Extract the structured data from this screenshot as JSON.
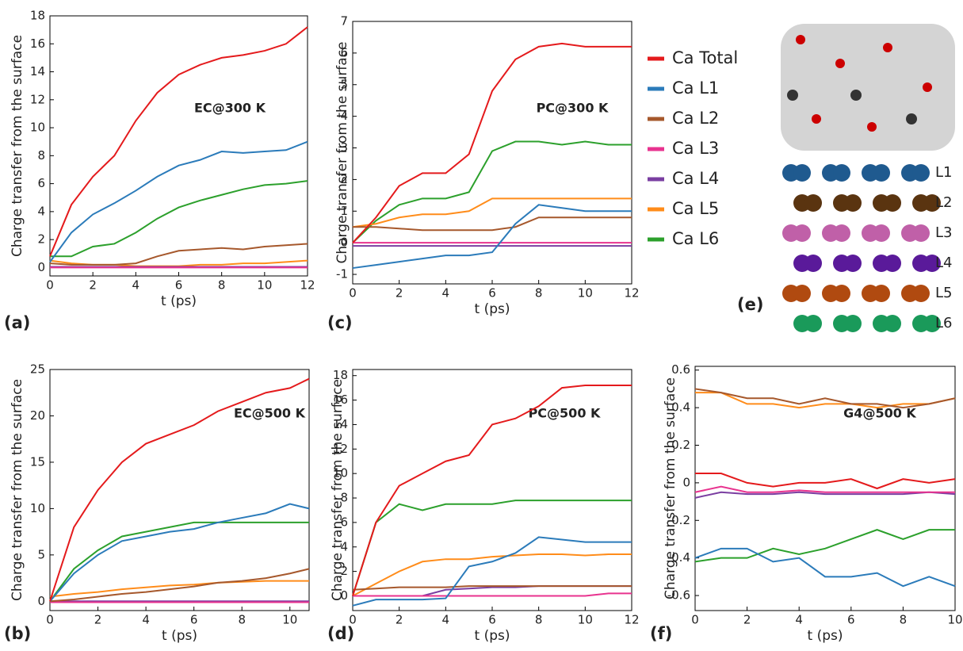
{
  "chart_data": [
    {
      "type": "line",
      "label": "(a)",
      "annotation": "EC@300 K",
      "xlabel": "t (ps)",
      "ylabel": "Charge transfer from the surface",
      "x": [
        0,
        1,
        2,
        3,
        4,
        5,
        6,
        7,
        8,
        9,
        10,
        11,
        12
      ],
      "xlim": [
        0,
        12
      ],
      "xticks": [
        0,
        2,
        4,
        6,
        8,
        10,
        12
      ],
      "ylim": [
        -0.6,
        18
      ],
      "yticks": [
        0,
        2,
        4,
        6,
        8,
        10,
        12,
        14,
        16,
        18
      ],
      "series": [
        {
          "name": "Ca Total",
          "color": "#e41a1c",
          "values": [
            0.8,
            4.5,
            6.5,
            8,
            10.5,
            12.5,
            13.8,
            14.5,
            15,
            15.2,
            15.5,
            16,
            17.2
          ]
        },
        {
          "name": "Ca L1",
          "color": "#2b7bba",
          "values": [
            0.4,
            2.5,
            3.8,
            4.6,
            5.5,
            6.5,
            7.3,
            7.7,
            8.3,
            8.2,
            8.3,
            8.4,
            9
          ]
        },
        {
          "name": "Ca L2",
          "color": "#a6582c",
          "values": [
            0.3,
            0.2,
            0.2,
            0.2,
            0.3,
            0.8,
            1.2,
            1.3,
            1.4,
            1.3,
            1.5,
            1.6,
            1.7
          ]
        },
        {
          "name": "Ca L3",
          "color": "#e8338f",
          "values": [
            0,
            0,
            0,
            0,
            0,
            0,
            0,
            0,
            0,
            0,
            0,
            0,
            0
          ]
        },
        {
          "name": "Ca L4",
          "color": "#7a3ea1",
          "values": [
            0.05,
            0.05,
            0.05,
            0.05,
            0.05,
            0.05,
            0.05,
            0.05,
            0.05,
            0.05,
            0.05,
            0.05,
            0.05
          ]
        },
        {
          "name": "Ca L5",
          "color": "#ff8c1a",
          "values": [
            0.5,
            0.3,
            0.2,
            0.2,
            0.1,
            0.1,
            0.1,
            0.2,
            0.2,
            0.3,
            0.3,
            0.4,
            0.5
          ]
        },
        {
          "name": "Ca L6",
          "color": "#2ca02c",
          "values": [
            0.8,
            0.8,
            1.5,
            1.7,
            2.5,
            3.5,
            4.3,
            4.8,
            5.2,
            5.6,
            5.9,
            6,
            6.2
          ]
        }
      ]
    },
    {
      "type": "line",
      "label": "(c)",
      "annotation": "PC@300 K",
      "xlabel": "t (ps)",
      "ylabel": "Charge transfer from the surface",
      "x": [
        0,
        1,
        2,
        3,
        4,
        5,
        6,
        7,
        8,
        9,
        10,
        11,
        12
      ],
      "xlim": [
        0,
        12
      ],
      "xticks": [
        0,
        2,
        4,
        6,
        8,
        10,
        12
      ],
      "ylim": [
        -1.3,
        7
      ],
      "yticks": [
        -1,
        0,
        1,
        2,
        3,
        4,
        5,
        6,
        7
      ],
      "series": [
        {
          "name": "Ca Total",
          "color": "#e41a1c",
          "values": [
            0,
            0.8,
            1.8,
            2.2,
            2.2,
            2.8,
            4.8,
            5.8,
            6.2,
            6.3,
            6.2,
            6.2,
            6.2
          ]
        },
        {
          "name": "Ca L1",
          "color": "#2b7bba",
          "values": [
            -0.8,
            -0.7,
            -0.6,
            -0.5,
            -0.4,
            -0.4,
            -0.3,
            0.6,
            1.2,
            1.1,
            1,
            1,
            1
          ]
        },
        {
          "name": "Ca L2",
          "color": "#a6582c",
          "values": [
            0.5,
            0.5,
            0.45,
            0.4,
            0.4,
            0.4,
            0.4,
            0.5,
            0.8,
            0.8,
            0.8,
            0.8,
            0.8
          ]
        },
        {
          "name": "Ca L3",
          "color": "#e8338f",
          "values": [
            0,
            0,
            0,
            0,
            0,
            0,
            0,
            0,
            0,
            0,
            0,
            0,
            0
          ]
        },
        {
          "name": "Ca L4",
          "color": "#7a3ea1",
          "values": [
            -0.1,
            -0.1,
            -0.1,
            -0.1,
            -0.1,
            -0.1,
            -0.1,
            -0.1,
            -0.1,
            -0.1,
            -0.1,
            -0.1,
            -0.1
          ]
        },
        {
          "name": "Ca L5",
          "color": "#ff8c1a",
          "values": [
            0.5,
            0.6,
            0.8,
            0.9,
            0.9,
            1,
            1.4,
            1.4,
            1.4,
            1.4,
            1.4,
            1.4,
            1.4
          ]
        },
        {
          "name": "Ca L6",
          "color": "#2ca02c",
          "values": [
            0,
            0.7,
            1.2,
            1.4,
            1.4,
            1.6,
            2.9,
            3.2,
            3.2,
            3.1,
            3.2,
            3.1,
            3.1
          ]
        }
      ]
    },
    {
      "type": "line",
      "label": "(b)",
      "annotation": "EC@500 K",
      "xlabel": "t (ps)",
      "ylabel": "Charge transfer from the surface",
      "x": [
        0,
        1,
        2,
        3,
        4,
        5,
        6,
        7,
        8,
        9,
        10,
        10.8
      ],
      "xlim": [
        0,
        10.8
      ],
      "xticks": [
        0,
        2,
        4,
        6,
        8,
        10
      ],
      "ylim": [
        -1,
        25
      ],
      "yticks": [
        0,
        5,
        10,
        15,
        20,
        25
      ],
      "series": [
        {
          "name": "Ca Total",
          "color": "#e41a1c",
          "values": [
            0,
            8,
            12,
            15,
            17,
            18,
            19,
            20.5,
            21.5,
            22.5,
            23,
            24
          ]
        },
        {
          "name": "Ca L1",
          "color": "#2b7bba",
          "values": [
            0,
            3,
            5,
            6.5,
            7,
            7.5,
            7.8,
            8.5,
            9,
            9.5,
            10.5,
            10
          ]
        },
        {
          "name": "Ca L2",
          "color": "#a6582c",
          "values": [
            0,
            0.2,
            0.5,
            0.8,
            1,
            1.3,
            1.6,
            2,
            2.2,
            2.5,
            3,
            3.5
          ]
        },
        {
          "name": "Ca L3",
          "color": "#e8338f",
          "values": [
            -0.1,
            -0.1,
            -0.1,
            -0.1,
            -0.1,
            -0.1,
            -0.1,
            -0.1,
            -0.1,
            -0.1,
            -0.1,
            -0.1
          ]
        },
        {
          "name": "Ca L4",
          "color": "#7a3ea1",
          "values": [
            0,
            0,
            0,
            0,
            0,
            0,
            0,
            0,
            0,
            0,
            0,
            0
          ]
        },
        {
          "name": "Ca L5",
          "color": "#ff8c1a",
          "values": [
            0.5,
            0.8,
            1,
            1.3,
            1.5,
            1.7,
            1.8,
            2,
            2.1,
            2.2,
            2.2,
            2.2
          ]
        },
        {
          "name": "Ca L6",
          "color": "#2ca02c",
          "values": [
            0,
            3.5,
            5.5,
            7,
            7.5,
            8,
            8.5,
            8.5,
            8.5,
            8.5,
            8.5,
            8.5
          ]
        }
      ]
    },
    {
      "type": "line",
      "label": "(d)",
      "annotation": "PC@500 K",
      "xlabel": "t (ps)",
      "ylabel": "Charge transfer from the surface",
      "x": [
        0,
        1,
        2,
        3,
        4,
        5,
        6,
        7,
        8,
        9,
        10,
        11,
        12
      ],
      "xlim": [
        0,
        12
      ],
      "xticks": [
        0,
        2,
        4,
        6,
        8,
        10,
        12
      ],
      "ylim": [
        -1.2,
        18.5
      ],
      "yticks": [
        0,
        2,
        4,
        6,
        8,
        10,
        12,
        14,
        16,
        18
      ],
      "series": [
        {
          "name": "Ca Total",
          "color": "#e41a1c",
          "values": [
            0,
            6,
            9,
            10,
            11,
            11.5,
            14,
            14.5,
            15.5,
            17,
            17.2,
            17.2,
            17.2
          ]
        },
        {
          "name": "Ca L1",
          "color": "#2b7bba",
          "values": [
            -0.8,
            -0.3,
            -0.3,
            -0.3,
            -0.2,
            2.4,
            2.8,
            3.5,
            4.8,
            4.6,
            4.4,
            4.4,
            4.4
          ]
        },
        {
          "name": "Ca L2",
          "color": "#a6582c",
          "values": [
            0.5,
            0.6,
            0.7,
            0.7,
            0.7,
            0.8,
            0.8,
            0.8,
            0.8,
            0.8,
            0.8,
            0.8,
            0.8
          ]
        },
        {
          "name": "Ca L3",
          "color": "#e8338f",
          "values": [
            0,
            0,
            0,
            0,
            0,
            0,
            0,
            0,
            0,
            0,
            0,
            0.2,
            0.2
          ]
        },
        {
          "name": "Ca L4",
          "color": "#7a3ea1",
          "values": [
            0,
            0,
            0,
            0,
            0.5,
            0.6,
            0.7,
            0.7,
            0.8,
            0.8,
            0.8,
            0.8,
            0.8
          ]
        },
        {
          "name": "Ca L5",
          "color": "#ff8c1a",
          "values": [
            0,
            1,
            2,
            2.8,
            3,
            3,
            3.2,
            3.3,
            3.4,
            3.4,
            3.3,
            3.4,
            3.4
          ]
        },
        {
          "name": "Ca L6",
          "color": "#2ca02c",
          "values": [
            0,
            6,
            7.5,
            7,
            7.5,
            7.5,
            7.5,
            7.8,
            7.8,
            7.8,
            7.8,
            7.8,
            7.8
          ]
        }
      ]
    },
    {
      "type": "line",
      "label": "(f)",
      "annotation": "G4@500 K",
      "xlabel": "t (ps)",
      "ylabel": "Charge transfer from the surface",
      "x": [
        0,
        1,
        2,
        3,
        4,
        5,
        6,
        7,
        8,
        9,
        10
      ],
      "xlim": [
        0,
        10
      ],
      "xticks": [
        0,
        2,
        4,
        6,
        8,
        10
      ],
      "ylim": [
        -0.68,
        0.62
      ],
      "yticks": [
        -0.6,
        -0.4,
        -0.2,
        0,
        0.2,
        0.4,
        0.6
      ],
      "series": [
        {
          "name": "Ca Total",
          "color": "#e41a1c",
          "values": [
            0.05,
            0.05,
            0,
            -0.02,
            0,
            0,
            0.02,
            -0.03,
            0.02,
            0,
            0.02
          ]
        },
        {
          "name": "Ca L1",
          "color": "#2b7bba",
          "values": [
            -0.4,
            -0.35,
            -0.35,
            -0.42,
            -0.4,
            -0.5,
            -0.5,
            -0.48,
            -0.55,
            -0.5,
            -0.55
          ]
        },
        {
          "name": "Ca L2",
          "color": "#a6582c",
          "values": [
            0.5,
            0.48,
            0.45,
            0.45,
            0.42,
            0.45,
            0.42,
            0.42,
            0.4,
            0.42,
            0.45
          ]
        },
        {
          "name": "Ca L3",
          "color": "#e8338f",
          "values": [
            -0.05,
            -0.02,
            -0.05,
            -0.05,
            -0.04,
            -0.05,
            -0.05,
            -0.05,
            -0.05,
            -0.05,
            -0.05
          ]
        },
        {
          "name": "Ca L4",
          "color": "#7a3ea1",
          "values": [
            -0.08,
            -0.05,
            -0.06,
            -0.06,
            -0.05,
            -0.06,
            -0.06,
            -0.06,
            -0.06,
            -0.05,
            -0.06
          ]
        },
        {
          "name": "Ca L5",
          "color": "#ff8c1a",
          "values": [
            0.48,
            0.48,
            0.42,
            0.42,
            0.4,
            0.42,
            0.42,
            0.4,
            0.42,
            0.42,
            0.45
          ]
        },
        {
          "name": "Ca L6",
          "color": "#2ca02c",
          "values": [
            -0.42,
            -0.4,
            -0.4,
            -0.35,
            -0.38,
            -0.35,
            -0.3,
            -0.25,
            -0.3,
            -0.25,
            -0.25
          ]
        }
      ]
    }
  ],
  "panel_e": {
    "label": "(e)",
    "layers": [
      "L1",
      "L2",
      "L3",
      "L4",
      "L5",
      "L6"
    ]
  }
}
